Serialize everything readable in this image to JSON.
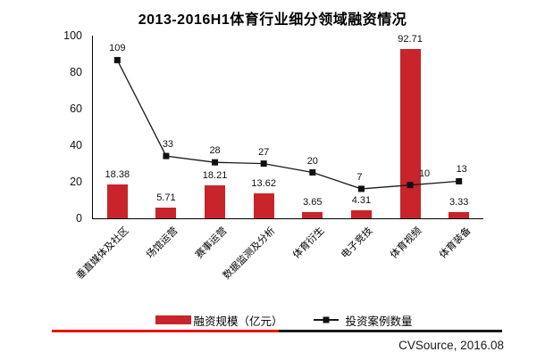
{
  "title": "2013-2016H1体育行业细分领域融资情况",
  "source": "CVSource, 2016.08",
  "legend": {
    "bar_label": "融资规模（亿元）",
    "line_label": "投资案例数量"
  },
  "colors": {
    "bar": "#C9232B",
    "line": "#1A1A1A",
    "marker": "#111111",
    "divider_red": "#EE1100",
    "divider_black": "#1A1A1A"
  },
  "chart_data": {
    "type": "bar",
    "title": "2013-2016H1体育行业细分领域融资情况",
    "categories": [
      "垂直媒体及社区",
      "场馆运营",
      "赛事运营",
      "数据监测及分析",
      "体育衍生",
      "电子竞技",
      "体育视频",
      "体育装备"
    ],
    "series": [
      {
        "name": "融资规模（亿元）",
        "type": "bar",
        "values": [
          18.38,
          5.71,
          18.21,
          13.62,
          3.65,
          4.31,
          92.71,
          3.33
        ]
      },
      {
        "name": "投资案例数量",
        "type": "line",
        "values": [
          109,
          33,
          28,
          27,
          20,
          7,
          10,
          13
        ],
        "label_dx": [
          0,
          2,
          0,
          0,
          0,
          -2,
          16,
          3
        ]
      }
    ],
    "xlabel": "",
    "ylabel": "",
    "ylim": [
      0,
      100
    ],
    "y_ticks": [
      0,
      20,
      40,
      60,
      80,
      100
    ],
    "grid": false,
    "legend_position": "bottom"
  }
}
